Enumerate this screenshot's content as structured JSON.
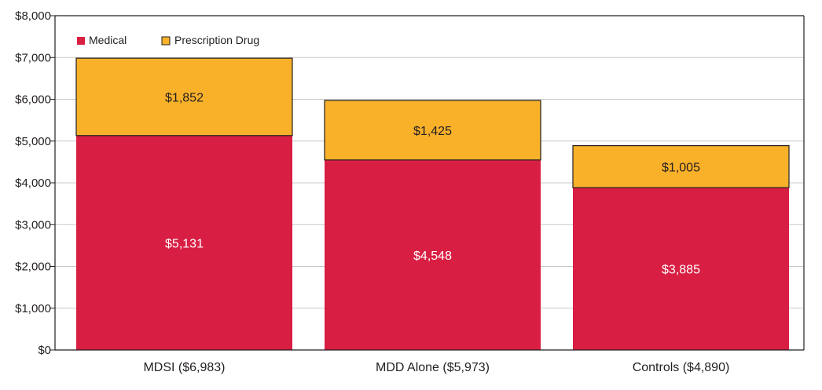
{
  "chart_data": {
    "type": "bar",
    "stacked": true,
    "categories": [
      "MDSI    ($6,983)",
      "MDD Alone ($5,973)",
      "Controls ($4,890)"
    ],
    "series": [
      {
        "name": "Medical",
        "color": "#d91e43",
        "values": [
          5131,
          4548,
          3885
        ],
        "labels": [
          "$5,131",
          "$4,548",
          "$3,885"
        ],
        "label_color": "#ffffff"
      },
      {
        "name": "Prescription Drug",
        "color": "#f9b12a",
        "values": [
          1852,
          1425,
          1005
        ],
        "labels": [
          "$1,852",
          "$1,425",
          "$1,005"
        ],
        "label_color": "#231f20"
      }
    ],
    "ylim": [
      0,
      8000
    ],
    "y_ticks": [
      0,
      1000,
      2000,
      3000,
      4000,
      5000,
      6000,
      7000,
      8000
    ],
    "y_tick_labels": [
      "$0",
      "$1,000",
      "$2,000",
      "$3,000",
      "$4,000",
      "$5,000",
      "$6,000",
      "$7,000",
      "$8,000"
    ],
    "grid": true,
    "legend": {
      "position": "top-left",
      "items": [
        "Medical",
        "Prescription Drug"
      ]
    },
    "title": "",
    "xlabel": "",
    "ylabel": ""
  }
}
